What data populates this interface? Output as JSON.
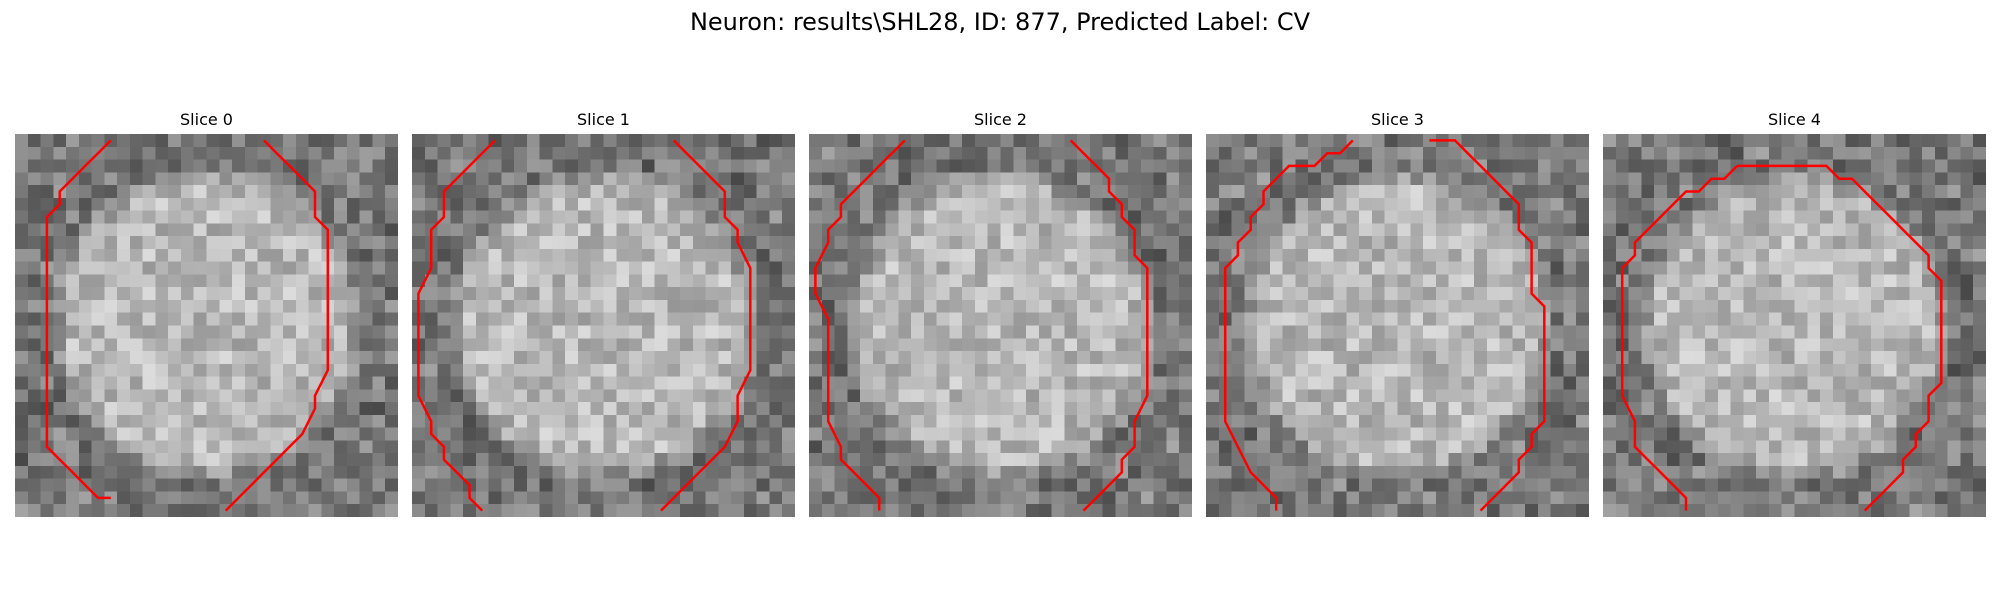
{
  "figure": {
    "title": "Neuron: results\\SHL28, ID: 877, Predicted Label: CV"
  },
  "colors": {
    "background": "#ffffff",
    "contour": "#ff0000"
  },
  "panels": [
    {
      "label": "Slice 0",
      "contour": [
        [
          7,
          0
        ],
        [
          6,
          1
        ],
        [
          5,
          2
        ],
        [
          4,
          3
        ],
        [
          3,
          4
        ],
        [
          3,
          5
        ],
        [
          2,
          6
        ],
        [
          2,
          7
        ],
        [
          2,
          8
        ],
        [
          2,
          10
        ],
        [
          2,
          12
        ],
        [
          2,
          14
        ],
        [
          2,
          16
        ],
        [
          2,
          18
        ],
        [
          2,
          20
        ],
        [
          2,
          22
        ],
        [
          2,
          24
        ],
        [
          3,
          25
        ],
        [
          4,
          26
        ],
        [
          5,
          27
        ],
        [
          6,
          28
        ],
        [
          7,
          28
        ]
      ],
      "contour2": [
        [
          19,
          0
        ],
        [
          20,
          1
        ],
        [
          21,
          2
        ],
        [
          22,
          3
        ],
        [
          23,
          4
        ],
        [
          23,
          5
        ],
        [
          23,
          6
        ],
        [
          24,
          7
        ],
        [
          24,
          8
        ],
        [
          24,
          10
        ],
        [
          24,
          12
        ],
        [
          24,
          14
        ],
        [
          24,
          16
        ],
        [
          24,
          17
        ],
        [
          24,
          18
        ],
        [
          23,
          20
        ],
        [
          23,
          21
        ],
        [
          22,
          23
        ],
        [
          21,
          24
        ],
        [
          20,
          25
        ],
        [
          19,
          26
        ],
        [
          18,
          27
        ],
        [
          17,
          28
        ],
        [
          16,
          29
        ]
      ]
    },
    {
      "label": "Slice 1",
      "contour": [
        [
          6,
          0
        ],
        [
          5,
          1
        ],
        [
          4,
          2
        ],
        [
          3,
          3
        ],
        [
          2,
          4
        ],
        [
          2,
          6
        ],
        [
          1,
          7
        ],
        [
          1,
          8
        ],
        [
          1,
          10
        ],
        [
          0,
          12
        ],
        [
          0,
          14
        ],
        [
          0,
          16
        ],
        [
          0,
          18
        ],
        [
          0,
          20
        ],
        [
          1,
          22
        ],
        [
          1,
          23
        ],
        [
          2,
          24
        ],
        [
          2,
          25
        ],
        [
          3,
          26
        ],
        [
          4,
          27
        ],
        [
          4,
          28
        ],
        [
          5,
          29
        ]
      ],
      "contour2": [
        [
          20,
          0
        ],
        [
          21,
          1
        ],
        [
          22,
          2
        ],
        [
          23,
          3
        ],
        [
          24,
          4
        ],
        [
          24,
          6
        ],
        [
          25,
          7
        ],
        [
          25,
          8
        ],
        [
          26,
          10
        ],
        [
          26,
          12
        ],
        [
          26,
          14
        ],
        [
          26,
          16
        ],
        [
          26,
          18
        ],
        [
          25,
          20
        ],
        [
          25,
          22
        ],
        [
          24,
          24
        ],
        [
          23,
          25
        ],
        [
          22,
          26
        ],
        [
          21,
          27
        ],
        [
          20,
          28
        ],
        [
          19,
          29
        ]
      ]
    },
    {
      "label": "Slice 2",
      "contour": [
        [
          7,
          0
        ],
        [
          6,
          1
        ],
        [
          5,
          2
        ],
        [
          4,
          3
        ],
        [
          3,
          4
        ],
        [
          2,
          5
        ],
        [
          2,
          6
        ],
        [
          1,
          7
        ],
        [
          1,
          8
        ],
        [
          0,
          10
        ],
        [
          0,
          12
        ],
        [
          1,
          14
        ],
        [
          1,
          16
        ],
        [
          1,
          18
        ],
        [
          1,
          20
        ],
        [
          1,
          22
        ],
        [
          2,
          24
        ],
        [
          2,
          25
        ],
        [
          3,
          26
        ],
        [
          4,
          27
        ],
        [
          5,
          28
        ],
        [
          5,
          29
        ]
      ],
      "contour2": [
        [
          20,
          0
        ],
        [
          21,
          1
        ],
        [
          22,
          2
        ],
        [
          23,
          3
        ],
        [
          23,
          4
        ],
        [
          24,
          5
        ],
        [
          24,
          6
        ],
        [
          25,
          7
        ],
        [
          25,
          9
        ],
        [
          26,
          10
        ],
        [
          26,
          12
        ],
        [
          26,
          14
        ],
        [
          26,
          16
        ],
        [
          26,
          18
        ],
        [
          26,
          20
        ],
        [
          25,
          22
        ],
        [
          25,
          24
        ],
        [
          24,
          25
        ],
        [
          24,
          26
        ],
        [
          23,
          27
        ],
        [
          22,
          28
        ],
        [
          21,
          29
        ]
      ]
    },
    {
      "label": "Slice 3",
      "contour": [
        [
          11,
          0
        ],
        [
          10,
          1
        ],
        [
          9,
          1
        ],
        [
          8,
          2
        ],
        [
          7,
          2
        ],
        [
          6,
          2
        ],
        [
          5,
          3
        ],
        [
          4,
          4
        ],
        [
          4,
          5
        ],
        [
          3,
          6
        ],
        [
          3,
          7
        ],
        [
          2,
          8
        ],
        [
          2,
          9
        ],
        [
          1,
          10
        ],
        [
          1,
          11
        ],
        [
          1,
          12
        ],
        [
          1,
          14
        ],
        [
          1,
          16
        ],
        [
          1,
          18
        ],
        [
          1,
          20
        ],
        [
          1,
          22
        ],
        [
          2,
          24
        ],
        [
          3,
          26
        ],
        [
          4,
          27
        ],
        [
          5,
          28
        ],
        [
          5,
          29
        ]
      ],
      "contour2": [
        [
          17,
          0
        ],
        [
          19,
          0
        ],
        [
          20,
          1
        ],
        [
          21,
          2
        ],
        [
          22,
          3
        ],
        [
          23,
          4
        ],
        [
          24,
          5
        ],
        [
          24,
          6
        ],
        [
          24,
          7
        ],
        [
          25,
          8
        ],
        [
          25,
          10
        ],
        [
          25,
          12
        ],
        [
          26,
          13
        ],
        [
          26,
          14
        ],
        [
          26,
          16
        ],
        [
          26,
          18
        ],
        [
          26,
          20
        ],
        [
          26,
          22
        ],
        [
          25,
          23
        ],
        [
          25,
          24
        ],
        [
          24,
          25
        ],
        [
          24,
          26
        ],
        [
          23,
          27
        ],
        [
          22,
          28
        ],
        [
          21,
          29
        ]
      ]
    },
    {
      "label": "Slice 4",
      "contour": [
        [
          10,
          2
        ],
        [
          9,
          3
        ],
        [
          8,
          3
        ],
        [
          7,
          4
        ],
        [
          6,
          4
        ],
        [
          5,
          5
        ],
        [
          4,
          6
        ],
        [
          3,
          7
        ],
        [
          2,
          8
        ],
        [
          2,
          9
        ],
        [
          1,
          10
        ],
        [
          1,
          11
        ],
        [
          1,
          12
        ],
        [
          1,
          14
        ],
        [
          1,
          16
        ],
        [
          1,
          18
        ],
        [
          1,
          20
        ],
        [
          2,
          22
        ],
        [
          2,
          24
        ],
        [
          3,
          25
        ],
        [
          4,
          26
        ],
        [
          5,
          27
        ],
        [
          6,
          28
        ],
        [
          6,
          29
        ]
      ],
      "contour2": [
        [
          10,
          2
        ],
        [
          11,
          2
        ],
        [
          13,
          2
        ],
        [
          15,
          2
        ],
        [
          17,
          2
        ],
        [
          18,
          3
        ],
        [
          19,
          3
        ],
        [
          20,
          4
        ],
        [
          21,
          5
        ],
        [
          22,
          6
        ],
        [
          23,
          7
        ],
        [
          24,
          8
        ],
        [
          25,
          9
        ],
        [
          25,
          10
        ],
        [
          26,
          11
        ],
        [
          26,
          12
        ],
        [
          26,
          14
        ],
        [
          26,
          16
        ],
        [
          26,
          18
        ],
        [
          26,
          19
        ],
        [
          25,
          20
        ],
        [
          25,
          21
        ],
        [
          25,
          22
        ],
        [
          24,
          23
        ],
        [
          24,
          24
        ],
        [
          23,
          25
        ],
        [
          23,
          26
        ],
        [
          22,
          27
        ],
        [
          21,
          28
        ],
        [
          20,
          29
        ]
      ]
    }
  ]
}
